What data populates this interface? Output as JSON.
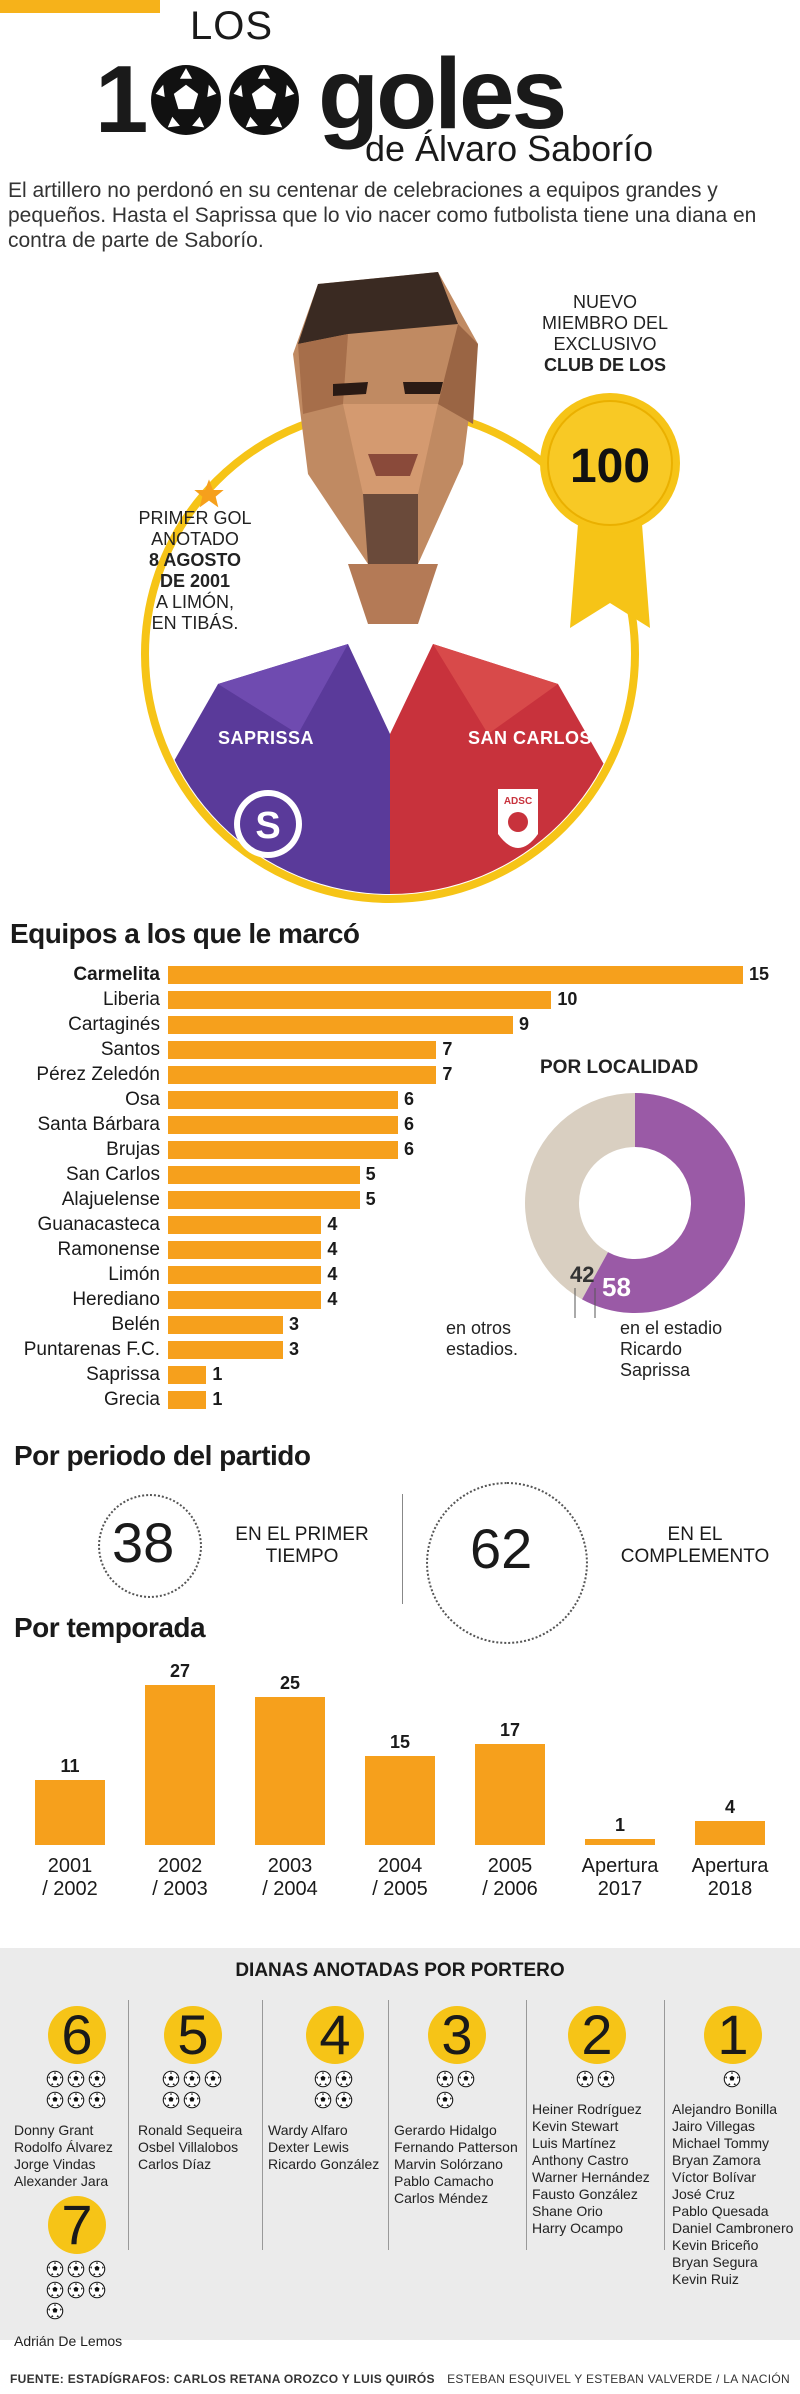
{
  "header": {
    "los": "LOS",
    "hundred_one": "1",
    "goles": "goles",
    "de": "de Álvaro Saborío",
    "intro": "El artillero no perdonó en su centenar de celebraciones a equipos grandes y pequeños. Hasta el Saprissa que lo vio nacer como futbolista tiene una diana en contra de parte de Saborío."
  },
  "portrait": {
    "new_member_line1": "NUEVO",
    "new_member_line2": "MIEMBRO DEL",
    "new_member_line3": "EXCLUSIVO",
    "new_member_line4": "CLUB DE LOS",
    "medal_number": "100",
    "first_goal_line1": "PRIMER GOL",
    "first_goal_line2": "ANOTADO",
    "first_goal_line3": "8 AGOSTO",
    "first_goal_line4": "DE 2001",
    "first_goal_line5": "A LIMÓN,",
    "first_goal_line6": "EN TIBÁS.",
    "left_team": "SAPRISSA",
    "right_team": "SAN CARLOS",
    "badge_left_letter": "S",
    "badge_right_text": "ADSC",
    "colors": {
      "purple": "#5a3a9a",
      "red": "#c8323c",
      "gold": "#f6c417",
      "accent": "#f6a01c"
    }
  },
  "teams": {
    "title": "Equipos a los que le marcó",
    "chart_data": {
      "type": "bar",
      "orientation": "horizontal",
      "categories": [
        "Carmelita",
        "Liberia",
        "Cartaginés",
        "Santos",
        "Pérez Zeledón",
        "Osa",
        "Santa Bárbara",
        "Brujas",
        "San Carlos",
        "Alajuelense",
        "Guanacasteca",
        "Ramonense",
        "Limón",
        "Herediano",
        "Belén",
        "Puntarenas F.C.",
        "Saprissa",
        "Grecia"
      ],
      "values": [
        15,
        10,
        9,
        7,
        7,
        6,
        6,
        6,
        5,
        5,
        4,
        4,
        4,
        4,
        3,
        3,
        1,
        1
      ],
      "xlim": [
        0,
        15
      ]
    },
    "value_labels": [
      "15",
      "10",
      "9",
      "7",
      "7",
      "6",
      "6",
      "6",
      "5",
      "5",
      "4",
      "4",
      "4",
      "4",
      "3",
      "3",
      "1",
      "1"
    ]
  },
  "locality": {
    "title": "POR LOCALIDAD",
    "chart_data": {
      "type": "pie",
      "categories": [
        "en otros estadios.",
        "en el estadio Ricardo Saprissa"
      ],
      "values": [
        42,
        58
      ],
      "colors": [
        "#d9cfc1",
        "#9a5aa6"
      ]
    },
    "val_otros": "42",
    "val_estadio": "58",
    "label_otros_1": "en otros",
    "label_otros_2": "estadios.",
    "label_estadio_1": "en el estadio",
    "label_estadio_2": "Ricardo",
    "label_estadio_3": "Saprissa"
  },
  "period": {
    "title": "Por periodo del partido",
    "first_value": "38",
    "first_label_1": "EN EL PRIMER",
    "first_label_2": "TIEMPO",
    "second_value": "62",
    "second_label_1": "EN EL",
    "second_label_2": "COMPLEMENTO"
  },
  "season": {
    "title": "Por temporada",
    "chart_data": {
      "type": "bar",
      "categories": [
        "2001 / 2002",
        "2002 / 2003",
        "2003 / 2004",
        "2004 / 2005",
        "2005 / 2006",
        "Apertura 2017",
        "Apertura 2018"
      ],
      "values": [
        11,
        27,
        25,
        15,
        17,
        1,
        4
      ],
      "ylim": [
        0,
        27
      ]
    },
    "value_labels": [
      "11",
      "27",
      "25",
      "15",
      "17",
      "1",
      "4"
    ],
    "labels": [
      [
        "2001",
        "/ 2002"
      ],
      [
        "2002",
        "/ 2003"
      ],
      [
        "2003",
        "/ 2004"
      ],
      [
        "2004",
        "/ 2005"
      ],
      [
        "2005",
        "/ 2006"
      ],
      [
        "Apertura",
        "2017"
      ],
      [
        "Apertura",
        "2018"
      ]
    ]
  },
  "keepers": {
    "title": "DIANAS ANOTADAS POR PORTERO",
    "groups": [
      {
        "num": "6",
        "names": [
          "Donny Grant",
          "Rodolfo Álvarez",
          "Jorge Vindas",
          "Alexander Jara"
        ]
      },
      {
        "num": "5",
        "names": [
          "Ronald Sequeira",
          "Osbel Villalobos",
          "Carlos Díaz"
        ]
      },
      {
        "num": "4",
        "names": [
          "Wardy Alfaro",
          "Dexter Lewis",
          "Ricardo González"
        ]
      },
      {
        "num": "3",
        "names": [
          "Gerardo Hidalgo",
          "Fernando Patterson",
          "Marvin Solórzano",
          "Pablo Camacho",
          "Carlos Méndez"
        ]
      },
      {
        "num": "2",
        "names": [
          "Heiner Rodríguez",
          "Kevin Stewart",
          "Luis Martínez",
          "Anthony Castro",
          "Warner Hernández",
          "Fausto González",
          "Shane Orio",
          "Harry Ocampo"
        ]
      },
      {
        "num": "1",
        "names": [
          "Alejandro Bonilla",
          "Jairo Villegas",
          "Michael Tommy",
          "Bryan Zamora",
          "Víctor Bolívar",
          "José Cruz",
          "Pablo Quesada",
          "Daniel Cambronero",
          "Kevin Briceño",
          "Bryan Segura",
          "Kevin Ruiz"
        ]
      },
      {
        "num": "7",
        "names": [
          "Adrián De Lemos"
        ]
      }
    ]
  },
  "footer": {
    "source": "FUENTE: ESTADÍGRAFOS: CARLOS RETANA OROZCO Y LUIS QUIRÓS",
    "credits": "ESTEBAN ESQUIVEL Y ESTEBAN VALVERDE / LA NACIÓN"
  }
}
